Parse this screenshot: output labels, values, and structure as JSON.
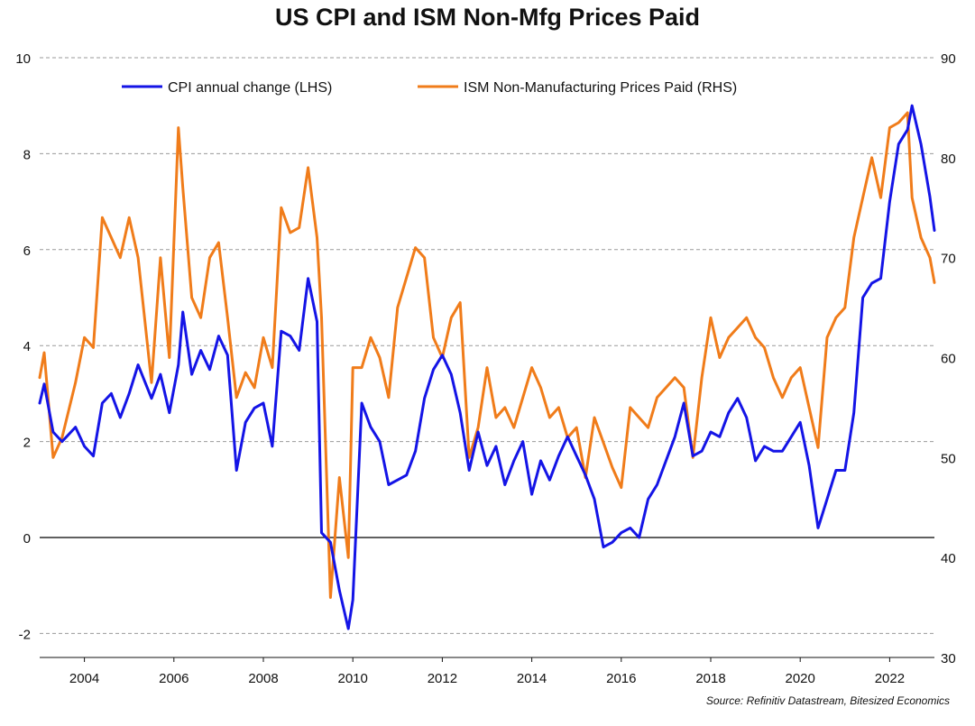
{
  "chart_data": {
    "type": "line",
    "title": "US CPI and ISM Non-Mfg Prices Paid",
    "source": "Source: Refinitiv Datastream, Bitesized Economics",
    "x_range": [
      2003.0,
      2023.0
    ],
    "x_ticks": [
      {
        "value": 2004,
        "label": "2004"
      },
      {
        "value": 2006,
        "label": "2006"
      },
      {
        "value": 2008,
        "label": "2008"
      },
      {
        "value": 2010,
        "label": "2010"
      },
      {
        "value": 2012,
        "label": "2012"
      },
      {
        "value": 2014,
        "label": "2014"
      },
      {
        "value": 2016,
        "label": "2016"
      },
      {
        "value": 2018,
        "label": "2018"
      },
      {
        "value": 2020,
        "label": "2020"
      },
      {
        "value": 2022,
        "label": "2022"
      }
    ],
    "left_axis": {
      "range": [
        -2.5,
        10
      ],
      "ticks": [
        -2,
        0,
        2,
        4,
        6,
        8,
        10
      ]
    },
    "right_axis": {
      "range": [
        30,
        90
      ],
      "ticks": [
        30,
        40,
        50,
        60,
        70,
        80,
        90
      ]
    },
    "grid": "horizontal-dashed",
    "legend_position": "top-center",
    "series": [
      {
        "name": "CPI annual change (LHS)",
        "axis": "left",
        "color": "#1414e6",
        "points": [
          [
            2003.0,
            2.8
          ],
          [
            2003.1,
            3.2
          ],
          [
            2003.3,
            2.2
          ],
          [
            2003.5,
            2.0
          ],
          [
            2003.8,
            2.3
          ],
          [
            2004.0,
            1.9
          ],
          [
            2004.2,
            1.7
          ],
          [
            2004.4,
            2.8
          ],
          [
            2004.6,
            3.0
          ],
          [
            2004.8,
            2.5
          ],
          [
            2005.0,
            3.0
          ],
          [
            2005.2,
            3.6
          ],
          [
            2005.5,
            2.9
          ],
          [
            2005.7,
            3.4
          ],
          [
            2005.9,
            2.6
          ],
          [
            2006.1,
            3.6
          ],
          [
            2006.2,
            4.7
          ],
          [
            2006.4,
            3.4
          ],
          [
            2006.6,
            3.9
          ],
          [
            2006.8,
            3.5
          ],
          [
            2007.0,
            4.2
          ],
          [
            2007.2,
            3.8
          ],
          [
            2007.4,
            1.4
          ],
          [
            2007.6,
            2.4
          ],
          [
            2007.8,
            2.7
          ],
          [
            2008.0,
            2.8
          ],
          [
            2008.2,
            1.9
          ],
          [
            2008.4,
            4.3
          ],
          [
            2008.6,
            4.2
          ],
          [
            2008.8,
            3.9
          ],
          [
            2009.0,
            5.4
          ],
          [
            2009.2,
            4.5
          ],
          [
            2009.3,
            0.1
          ],
          [
            2009.5,
            -0.1
          ],
          [
            2009.7,
            -1.1
          ],
          [
            2009.9,
            -1.9
          ],
          [
            2010.0,
            -1.3
          ],
          [
            2010.2,
            2.8
          ],
          [
            2010.4,
            2.3
          ],
          [
            2010.6,
            2.0
          ],
          [
            2010.8,
            1.1
          ],
          [
            2011.0,
            1.2
          ],
          [
            2011.2,
            1.3
          ],
          [
            2011.4,
            1.8
          ],
          [
            2011.6,
            2.9
          ],
          [
            2011.8,
            3.5
          ],
          [
            2012.0,
            3.8
          ],
          [
            2012.2,
            3.4
          ],
          [
            2012.4,
            2.6
          ],
          [
            2012.6,
            1.4
          ],
          [
            2012.8,
            2.2
          ],
          [
            2013.0,
            1.5
          ],
          [
            2013.2,
            1.9
          ],
          [
            2013.4,
            1.1
          ],
          [
            2013.6,
            1.6
          ],
          [
            2013.8,
            2.0
          ],
          [
            2014.0,
            0.9
          ],
          [
            2014.2,
            1.6
          ],
          [
            2014.4,
            1.2
          ],
          [
            2014.6,
            1.7
          ],
          [
            2014.8,
            2.1
          ],
          [
            2015.0,
            1.7
          ],
          [
            2015.2,
            1.3
          ],
          [
            2015.4,
            0.8
          ],
          [
            2015.6,
            -0.2
          ],
          [
            2015.8,
            -0.1
          ],
          [
            2016.0,
            0.1
          ],
          [
            2016.2,
            0.2
          ],
          [
            2016.4,
            0.0
          ],
          [
            2016.6,
            0.8
          ],
          [
            2016.8,
            1.1
          ],
          [
            2017.0,
            1.6
          ],
          [
            2017.2,
            2.1
          ],
          [
            2017.4,
            2.8
          ],
          [
            2017.6,
            1.7
          ],
          [
            2017.8,
            1.8
          ],
          [
            2018.0,
            2.2
          ],
          [
            2018.2,
            2.1
          ],
          [
            2018.4,
            2.6
          ],
          [
            2018.6,
            2.9
          ],
          [
            2018.8,
            2.5
          ],
          [
            2019.0,
            1.6
          ],
          [
            2019.2,
            1.9
          ],
          [
            2019.4,
            1.8
          ],
          [
            2019.6,
            1.8
          ],
          [
            2019.8,
            2.1
          ],
          [
            2020.0,
            2.4
          ],
          [
            2020.2,
            1.5
          ],
          [
            2020.4,
            0.2
          ],
          [
            2020.6,
            0.8
          ],
          [
            2020.8,
            1.4
          ],
          [
            2021.0,
            1.4
          ],
          [
            2021.2,
            2.6
          ],
          [
            2021.4,
            5.0
          ],
          [
            2021.6,
            5.3
          ],
          [
            2021.8,
            5.4
          ],
          [
            2022.0,
            7.0
          ],
          [
            2022.2,
            8.2
          ],
          [
            2022.4,
            8.5
          ],
          [
            2022.5,
            9.0
          ],
          [
            2022.7,
            8.2
          ],
          [
            2022.9,
            7.1
          ],
          [
            2023.0,
            6.4
          ]
        ]
      },
      {
        "name": "ISM Non-Manufacturing Prices Paid (RHS)",
        "axis": "right",
        "color": "#f07c1a",
        "points": [
          [
            2003.0,
            58.0
          ],
          [
            2003.1,
            60.5
          ],
          [
            2003.3,
            50.0
          ],
          [
            2003.5,
            52.0
          ],
          [
            2003.8,
            57.5
          ],
          [
            2004.0,
            62.0
          ],
          [
            2004.2,
            61.0
          ],
          [
            2004.4,
            74.0
          ],
          [
            2004.6,
            72.0
          ],
          [
            2004.8,
            70.0
          ],
          [
            2005.0,
            74.0
          ],
          [
            2005.2,
            70.0
          ],
          [
            2005.5,
            57.5
          ],
          [
            2005.7,
            70.0
          ],
          [
            2005.9,
            60.0
          ],
          [
            2006.1,
            83.0
          ],
          [
            2006.2,
            77.0
          ],
          [
            2006.4,
            66.0
          ],
          [
            2006.6,
            64.0
          ],
          [
            2006.8,
            70.0
          ],
          [
            2007.0,
            71.5
          ],
          [
            2007.2,
            64.0
          ],
          [
            2007.4,
            56.0
          ],
          [
            2007.6,
            58.5
          ],
          [
            2007.8,
            57.0
          ],
          [
            2008.0,
            62.0
          ],
          [
            2008.2,
            59.0
          ],
          [
            2008.4,
            75.0
          ],
          [
            2008.6,
            72.5
          ],
          [
            2008.8,
            73.0
          ],
          [
            2009.0,
            79.0
          ],
          [
            2009.2,
            72.0
          ],
          [
            2009.3,
            64.0
          ],
          [
            2009.5,
            36.0
          ],
          [
            2009.7,
            48.0
          ],
          [
            2009.9,
            40.0
          ],
          [
            2010.0,
            59.0
          ],
          [
            2010.2,
            59.0
          ],
          [
            2010.4,
            62.0
          ],
          [
            2010.6,
            60.0
          ],
          [
            2010.8,
            56.0
          ],
          [
            2011.0,
            65.0
          ],
          [
            2011.2,
            68.0
          ],
          [
            2011.4,
            71.0
          ],
          [
            2011.6,
            70.0
          ],
          [
            2011.8,
            62.0
          ],
          [
            2012.0,
            60.0
          ],
          [
            2012.2,
            64.0
          ],
          [
            2012.4,
            65.5
          ],
          [
            2012.6,
            50.0
          ],
          [
            2012.8,
            53.0
          ],
          [
            2013.0,
            59.0
          ],
          [
            2013.2,
            54.0
          ],
          [
            2013.4,
            55.0
          ],
          [
            2013.6,
            53.0
          ],
          [
            2013.8,
            56.0
          ],
          [
            2014.0,
            59.0
          ],
          [
            2014.2,
            57.0
          ],
          [
            2014.4,
            54.0
          ],
          [
            2014.6,
            55.0
          ],
          [
            2014.8,
            52.0
          ],
          [
            2015.0,
            53.0
          ],
          [
            2015.2,
            48.0
          ],
          [
            2015.4,
            54.0
          ],
          [
            2015.6,
            51.5
          ],
          [
            2015.8,
            49.0
          ],
          [
            2016.0,
            47.0
          ],
          [
            2016.2,
            55.0
          ],
          [
            2016.4,
            54.0
          ],
          [
            2016.6,
            53.0
          ],
          [
            2016.8,
            56.0
          ],
          [
            2017.0,
            57.0
          ],
          [
            2017.2,
            58.0
          ],
          [
            2017.4,
            57.0
          ],
          [
            2017.6,
            50.0
          ],
          [
            2017.8,
            58.0
          ],
          [
            2018.0,
            64.0
          ],
          [
            2018.2,
            60.0
          ],
          [
            2018.4,
            62.0
          ],
          [
            2018.6,
            63.0
          ],
          [
            2018.8,
            64.0
          ],
          [
            2019.0,
            62.0
          ],
          [
            2019.2,
            61.0
          ],
          [
            2019.4,
            58.0
          ],
          [
            2019.6,
            56.0
          ],
          [
            2019.8,
            58.0
          ],
          [
            2020.0,
            59.0
          ],
          [
            2020.2,
            55.0
          ],
          [
            2020.4,
            51.0
          ],
          [
            2020.6,
            62.0
          ],
          [
            2020.8,
            64.0
          ],
          [
            2021.0,
            65.0
          ],
          [
            2021.2,
            72.0
          ],
          [
            2021.4,
            76.0
          ],
          [
            2021.6,
            80.0
          ],
          [
            2021.8,
            76.0
          ],
          [
            2022.0,
            83.0
          ],
          [
            2022.2,
            83.5
          ],
          [
            2022.4,
            84.5
          ],
          [
            2022.5,
            76.0
          ],
          [
            2022.7,
            72.0
          ],
          [
            2022.9,
            70.0
          ],
          [
            2023.0,
            67.5
          ]
        ]
      }
    ]
  }
}
